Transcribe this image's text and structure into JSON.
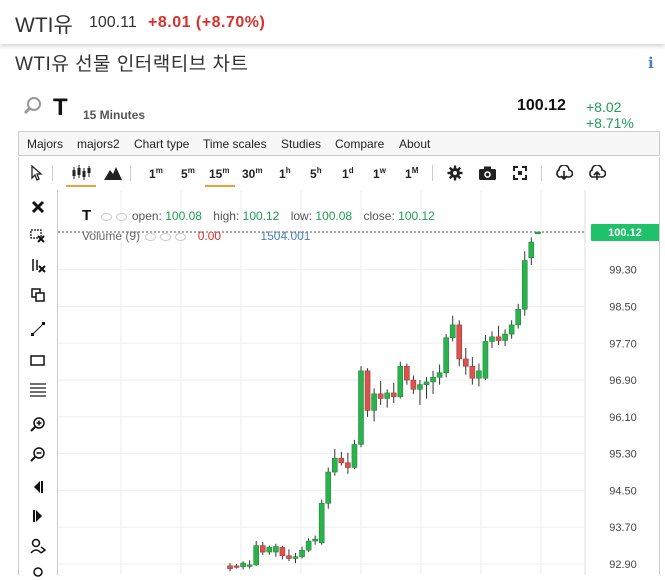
{
  "quote": {
    "symbol": "WTI유",
    "price": "100.11",
    "change": "+8.01 (+8.70%)"
  },
  "page_title": "WTI유 선물 인터랙티브 차트",
  "info_label": "i",
  "chart_header": {
    "symbol": "T",
    "interval": "15 Minutes",
    "last_price": "100.12",
    "last_change": "+8.02 +8.71%"
  },
  "menu": [
    "Majors",
    "majors2",
    "Chart type",
    "Time scales",
    "Studies",
    "Compare",
    "About"
  ],
  "toolbar": {
    "intervals": [
      {
        "n": "1",
        "u": "m"
      },
      {
        "n": "5",
        "u": "m"
      },
      {
        "n": "15",
        "u": "m"
      },
      {
        "n": "30",
        "u": "m"
      },
      {
        "n": "1",
        "u": "h"
      },
      {
        "n": "5",
        "u": "h"
      },
      {
        "n": "1",
        "u": "d"
      },
      {
        "n": "1",
        "u": "w"
      },
      {
        "n": "1",
        "u": "M"
      }
    ],
    "selected_interval": "15m"
  },
  "legend": {
    "symbol": "T",
    "open_label": "open:",
    "open": "100.08",
    "high_label": "high:",
    "high": "100.12",
    "low_label": "low:",
    "low": "100.08",
    "close_label": "close:",
    "close": "100.12"
  },
  "volume": {
    "label": "Volume (9)",
    "value": "0.00",
    "avg": "1504.001"
  },
  "icons": [
    "search-icon",
    "close-icon",
    "delete-drawing-icon",
    "magnet-icon",
    "copy-icon",
    "line-tool-icon",
    "rectangle-tool-icon",
    "fibonacci-tool-icon",
    "zoom-in-icon",
    "zoom-out-icon",
    "scroll-left-icon",
    "scroll-right-icon",
    "pan-icon",
    "cursor-icon",
    "candlestick-icon",
    "mountain-icon",
    "settings-icon",
    "camera-icon",
    "fullscreen-icon",
    "download-icon",
    "upload-icon"
  ],
  "colors": {
    "up": "#2bb24c",
    "down": "#d9534f",
    "accent_underline": "#e6a23c",
    "price_tag": "#1fc26b"
  },
  "chart_data": {
    "type": "candlestick",
    "y_ticks": [
      "99.30",
      "98.50",
      "97.70",
      "96.90",
      "96.10",
      "95.30",
      "94.50",
      "93.70",
      "92.90"
    ],
    "ylim": [
      92.75,
      100.9
    ],
    "current_price_label": "100.12",
    "current_price": 100.12,
    "candles": [
      {
        "o": 92.86,
        "h": 92.92,
        "l": 92.74,
        "c": 92.8
      },
      {
        "o": 92.86,
        "h": 92.9,
        "l": 92.8,
        "c": 92.84
      },
      {
        "o": 92.84,
        "h": 92.96,
        "l": 92.78,
        "c": 92.92
      },
      {
        "o": 92.86,
        "h": 92.98,
        "l": 92.8,
        "c": 92.88
      },
      {
        "o": 92.88,
        "h": 93.4,
        "l": 92.86,
        "c": 93.3
      },
      {
        "o": 93.3,
        "h": 93.38,
        "l": 93.1,
        "c": 93.16
      },
      {
        "o": 93.16,
        "h": 93.3,
        "l": 93.1,
        "c": 93.26
      },
      {
        "o": 93.16,
        "h": 93.34,
        "l": 93.06,
        "c": 93.28
      },
      {
        "o": 93.26,
        "h": 93.3,
        "l": 93.0,
        "c": 93.08
      },
      {
        "o": 93.08,
        "h": 93.22,
        "l": 92.96,
        "c": 93.02
      },
      {
        "o": 93.02,
        "h": 93.14,
        "l": 92.92,
        "c": 93.06
      },
      {
        "o": 93.06,
        "h": 93.28,
        "l": 93.02,
        "c": 93.2
      },
      {
        "o": 93.2,
        "h": 93.46,
        "l": 93.16,
        "c": 93.4
      },
      {
        "o": 93.4,
        "h": 93.52,
        "l": 93.32,
        "c": 93.44
      },
      {
        "o": 93.36,
        "h": 94.3,
        "l": 93.32,
        "c": 94.22
      },
      {
        "o": 94.22,
        "h": 95.0,
        "l": 94.1,
        "c": 94.9
      },
      {
        "o": 94.9,
        "h": 95.4,
        "l": 94.82,
        "c": 95.2
      },
      {
        "o": 95.2,
        "h": 95.34,
        "l": 95.04,
        "c": 95.1
      },
      {
        "o": 95.1,
        "h": 95.32,
        "l": 94.86,
        "c": 95.0
      },
      {
        "o": 95.0,
        "h": 95.6,
        "l": 94.96,
        "c": 95.5
      },
      {
        "o": 95.5,
        "h": 97.2,
        "l": 95.44,
        "c": 97.1
      },
      {
        "o": 97.1,
        "h": 97.16,
        "l": 96.1,
        "c": 96.24
      },
      {
        "o": 96.24,
        "h": 96.72,
        "l": 96.0,
        "c": 96.6
      },
      {
        "o": 96.6,
        "h": 96.88,
        "l": 96.36,
        "c": 96.5
      },
      {
        "o": 96.5,
        "h": 96.7,
        "l": 96.3,
        "c": 96.62
      },
      {
        "o": 96.62,
        "h": 96.84,
        "l": 96.4,
        "c": 96.54
      },
      {
        "o": 96.54,
        "h": 97.3,
        "l": 96.5,
        "c": 97.2
      },
      {
        "o": 97.2,
        "h": 97.26,
        "l": 96.8,
        "c": 96.9
      },
      {
        "o": 96.9,
        "h": 97.0,
        "l": 96.6,
        "c": 96.7
      },
      {
        "o": 96.7,
        "h": 96.9,
        "l": 96.36,
        "c": 96.8
      },
      {
        "o": 96.8,
        "h": 96.96,
        "l": 96.5,
        "c": 96.86
      },
      {
        "o": 96.86,
        "h": 97.1,
        "l": 96.6,
        "c": 96.96
      },
      {
        "o": 96.96,
        "h": 97.24,
        "l": 96.8,
        "c": 97.06
      },
      {
        "o": 97.06,
        "h": 97.9,
        "l": 96.96,
        "c": 97.82
      },
      {
        "o": 97.82,
        "h": 98.3,
        "l": 97.74,
        "c": 98.1
      },
      {
        "o": 98.1,
        "h": 98.2,
        "l": 97.2,
        "c": 97.36
      },
      {
        "o": 97.36,
        "h": 97.6,
        "l": 97.02,
        "c": 97.2
      },
      {
        "o": 97.2,
        "h": 97.4,
        "l": 96.8,
        "c": 96.94
      },
      {
        "o": 96.94,
        "h": 97.26,
        "l": 96.76,
        "c": 97.1
      },
      {
        "o": 96.94,
        "h": 97.88,
        "l": 96.9,
        "c": 97.74
      },
      {
        "o": 97.74,
        "h": 97.96,
        "l": 97.6,
        "c": 97.84
      },
      {
        "o": 97.84,
        "h": 98.08,
        "l": 97.66,
        "c": 97.76
      },
      {
        "o": 97.76,
        "h": 98.0,
        "l": 97.64,
        "c": 97.9
      },
      {
        "o": 97.9,
        "h": 98.2,
        "l": 97.8,
        "c": 98.1
      },
      {
        "o": 98.1,
        "h": 98.56,
        "l": 98.02,
        "c": 98.44
      },
      {
        "o": 98.44,
        "h": 99.7,
        "l": 98.3,
        "c": 99.5
      },
      {
        "o": 99.56,
        "h": 100.0,
        "l": 99.4,
        "c": 99.9
      },
      {
        "o": 100.08,
        "h": 100.12,
        "l": 100.08,
        "c": 100.12
      }
    ]
  }
}
